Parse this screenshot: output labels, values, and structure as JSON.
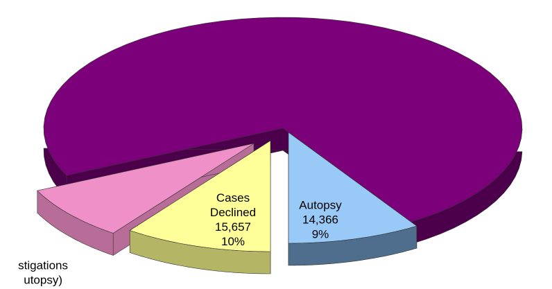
{
  "chart_data": {
    "type": "pie",
    "categories": [
      null,
      [
        "stigations",
        "utopsy)"
      ],
      [
        "Cases",
        "Declined"
      ],
      [
        "Autopsy"
      ]
    ],
    "values": [
      73,
      8,
      10,
      9
    ],
    "value_labels": [
      null,
      null,
      "10%",
      "9%"
    ],
    "counts": [
      null,
      null,
      15657,
      14366
    ],
    "count_labels": [
      null,
      null,
      "15,657",
      "14,366"
    ],
    "colors": [
      "#7b0079",
      "#f090c8",
      "#ffff99",
      "#99c9f7"
    ],
    "side_colors": [
      "#4c004b",
      "#b86c98",
      "#b5b566",
      "#4f6e8e"
    ]
  }
}
